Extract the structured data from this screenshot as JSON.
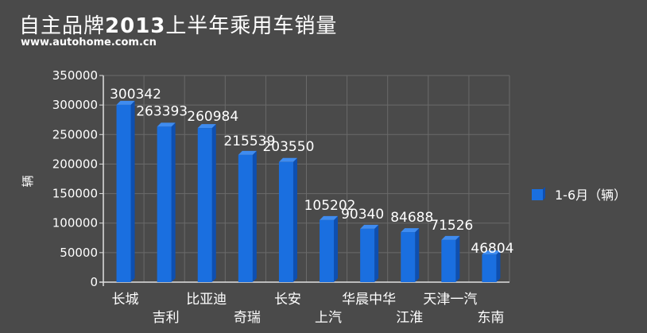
{
  "header": {
    "title_prefix": "自主品牌",
    "title_year": "2013",
    "title_suffix": "上半年乘用车销量",
    "source": "www.autohome.com.cn"
  },
  "chart_data": {
    "type": "bar",
    "categories": [
      "长城",
      "吉利",
      "比亚迪",
      "奇瑞",
      "长安",
      "上汽",
      "华晨中华",
      "江淮",
      "天津一汽",
      "东南"
    ],
    "series": [
      {
        "name": "1-6月（辆）",
        "values": [
          300342,
          263393,
          260984,
          215539,
          203550,
          105202,
          90340,
          84688,
          71526,
          46804
        ]
      }
    ],
    "ylabel": "辆",
    "ylim": [
      0,
      350000
    ],
    "yticks": [
      0,
      50000,
      100000,
      150000,
      200000,
      250000,
      300000,
      350000
    ],
    "grid": true,
    "legend": "right",
    "colors": {
      "bar": "#1a6fe0",
      "bar_shade": "#0e4fb0",
      "grid": "#6a6a6a",
      "axis": "#e0e0e0"
    }
  }
}
